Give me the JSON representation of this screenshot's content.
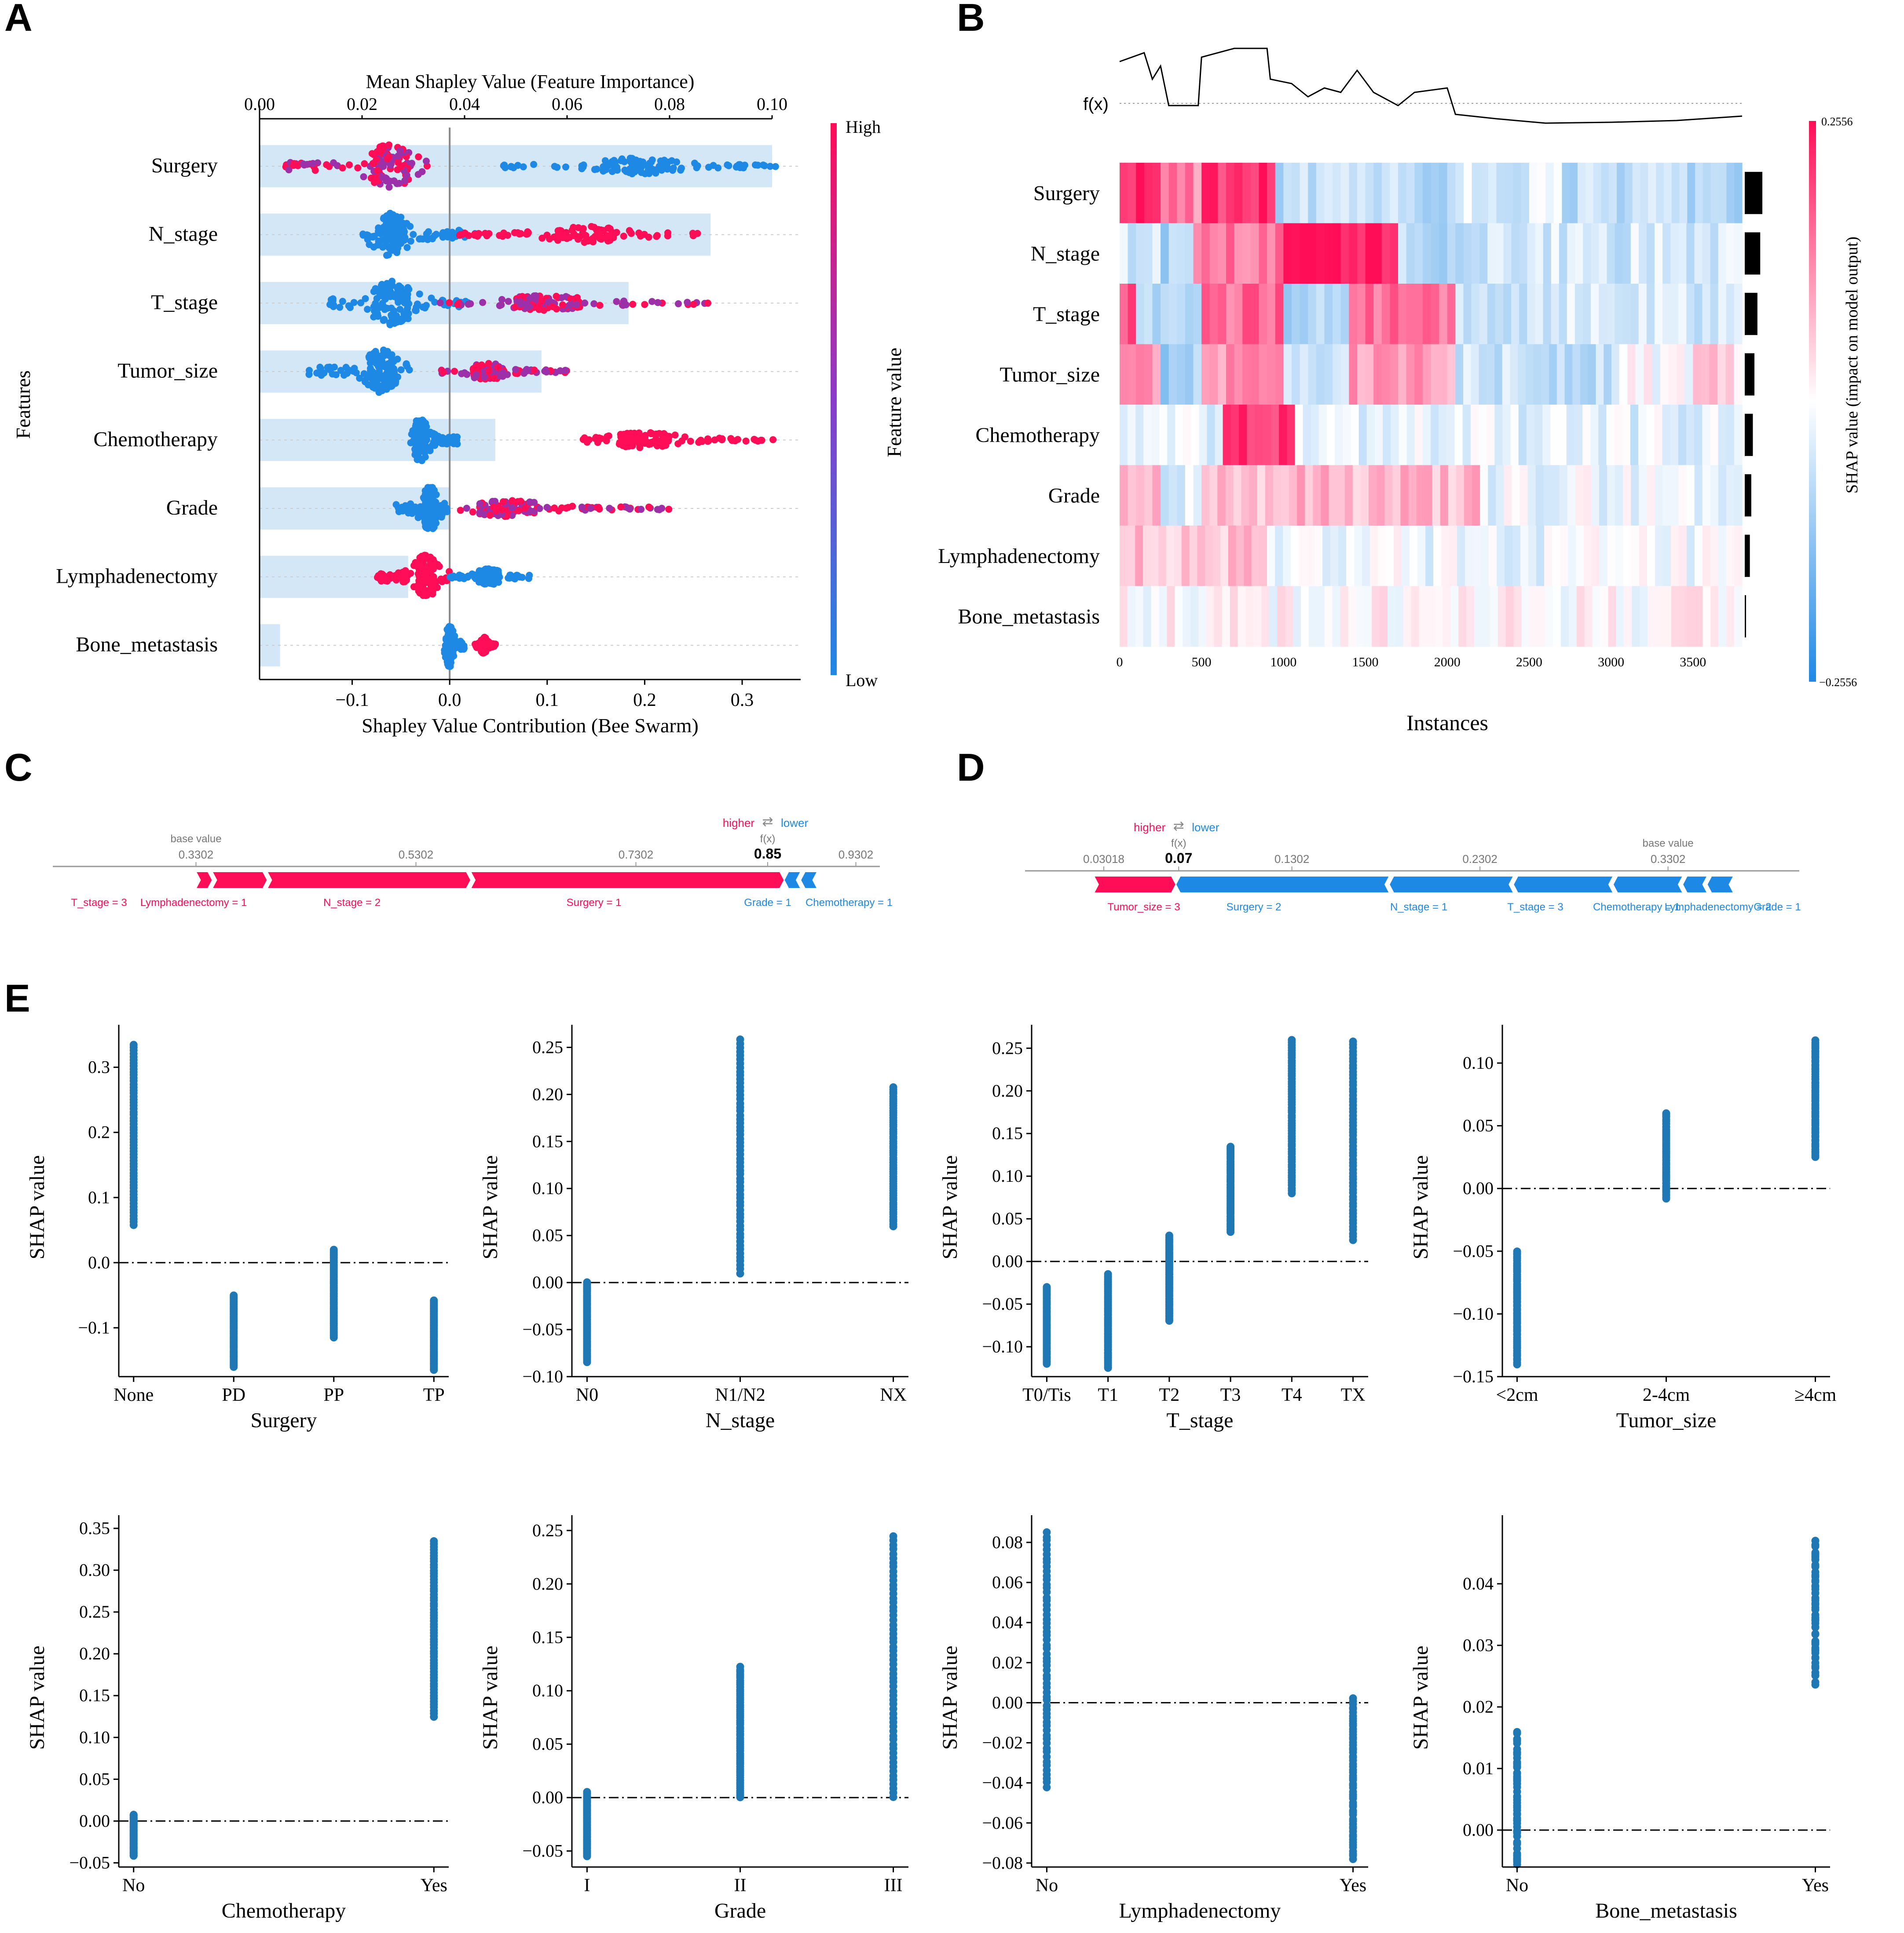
{
  "colors": {
    "pink": "#ff0d57",
    "blue": "#1e88e5",
    "purple": "#9b30a8",
    "lightblue": "#cfe4f6",
    "dep": "#1f77b4",
    "axis": "#000000",
    "grey": "#888888"
  },
  "panel_labels": [
    "A",
    "B",
    "C",
    "D",
    "E"
  ],
  "chart_data": [
    {
      "id": "A",
      "type": "scatter",
      "title": "Mean Shapley Value (Feature Importance)",
      "xlabel": "Shapley Value Contribution (Bee Swarm)",
      "ylabel": "Features",
      "colorbar": {
        "label": "Feature value",
        "high": "High",
        "low": "Low"
      },
      "features": [
        "Surgery",
        "N_stage",
        "T_stage",
        "Tumor_size",
        "Chemotherapy",
        "Grade",
        "Lymphadenectomy",
        "Bone_metastasis"
      ],
      "mean_importance": [
        0.1,
        0.088,
        0.072,
        0.055,
        0.046,
        0.037,
        0.029,
        0.004
      ],
      "importance_ticks": [
        "0.00",
        "0.02",
        "0.04",
        "0.06",
        "0.08",
        "0.10"
      ],
      "importance_tick_values": [
        0,
        0.02,
        0.04,
        0.06,
        0.08,
        0.1
      ],
      "importance_xlim": [
        0,
        0.1
      ],
      "shap_ticks": [
        "−0.1",
        "0.0",
        "0.1",
        "0.2",
        "0.3"
      ],
      "shap_tick_values": [
        -0.1,
        0,
        0.1,
        0.2,
        0.3
      ],
      "shap_xlim": [
        -0.195,
        0.36
      ],
      "swarm": [
        {
          "neg_low": -0.17,
          "neg_high": -0.02,
          "neg_center": -0.06,
          "neg_color": "pink_purple",
          "pos_low": 0.05,
          "pos_high": 0.335,
          "pos_center": 0.19,
          "pos_color": "blue"
        },
        {
          "neg_low": -0.09,
          "neg_high": 0.03,
          "neg_center": -0.06,
          "neg_color": "blue",
          "pos_low": 0.01,
          "pos_high": 0.26,
          "pos_center": 0.14,
          "pos_color": "pink"
        },
        {
          "neg_low": -0.125,
          "neg_high": 0.02,
          "neg_center": -0.06,
          "neg_color": "blue",
          "pos_low": -0.01,
          "pos_high": 0.265,
          "pos_center": 0.1,
          "pos_color": "pink_purple"
        },
        {
          "neg_low": -0.145,
          "neg_high": -0.04,
          "neg_center": -0.07,
          "neg_color": "blue",
          "pos_low": -0.01,
          "pos_high": 0.12,
          "pos_center": 0.04,
          "pos_color": "pink_purple"
        },
        {
          "neg_low": -0.04,
          "neg_high": 0.01,
          "neg_center": -0.03,
          "neg_color": "blue",
          "pos_low": 0.125,
          "pos_high": 0.335,
          "pos_center": 0.2,
          "pos_color": "pink"
        },
        {
          "neg_low": -0.055,
          "neg_high": 0.0,
          "neg_center": -0.02,
          "neg_color": "blue",
          "pos_low": 0.005,
          "pos_high": 0.245,
          "pos_center": 0.06,
          "pos_color": "pink_purple"
        },
        {
          "neg_low": -0.075,
          "neg_high": 0.0,
          "neg_center": -0.025,
          "neg_color": "pink",
          "pos_low": 0.0,
          "pos_high": 0.085,
          "pos_center": 0.04,
          "pos_color": "blue"
        },
        {
          "neg_low": -0.006,
          "neg_high": 0.015,
          "neg_center": 0.0,
          "neg_color": "blue",
          "pos_low": 0.025,
          "pos_high": 0.047,
          "pos_center": 0.035,
          "pos_color": "pink"
        }
      ]
    },
    {
      "id": "B",
      "type": "heatmap",
      "fx_label": "f(x)",
      "xlabel": "Instances",
      "colorbar_label": "SHAP value (impact on model output)",
      "colorbar_max": "0.2556",
      "colorbar_min": "−0.2556",
      "x_ticks": [
        "0",
        "500",
        "1000",
        "1500",
        "2000",
        "2500",
        "3000",
        "3500"
      ],
      "x_tick_values": [
        0,
        500,
        1000,
        1500,
        2000,
        2500,
        3000,
        3500
      ],
      "xlim": [
        0,
        3800
      ],
      "features": [
        "Surgery",
        "N_stage",
        "T_stage",
        "Tumor_size",
        "Chemotherapy",
        "Grade",
        "Lymphadenectomy",
        "Bone_metastasis"
      ],
      "importance_bar": [
        0.1,
        0.088,
        0.072,
        0.055,
        0.046,
        0.037,
        0.029,
        0.004
      ],
      "segments": [
        [
          [
            0,
            250,
            0.9
          ],
          [
            250,
            500,
            0.5
          ],
          [
            500,
            950,
            0.85
          ],
          [
            950,
            1300,
            -0.3
          ],
          [
            1300,
            1500,
            -0.15
          ],
          [
            1500,
            2100,
            -0.3
          ],
          [
            2100,
            2700,
            -0.15
          ],
          [
            2700,
            3800,
            -0.3
          ]
        ],
        [
          [
            0,
            250,
            -0.15
          ],
          [
            250,
            450,
            -0.35
          ],
          [
            450,
            1000,
            0.55
          ],
          [
            1000,
            1700,
            0.95
          ],
          [
            1700,
            2100,
            -0.3
          ],
          [
            2100,
            3800,
            -0.2
          ]
        ],
        [
          [
            0,
            100,
            0.7
          ],
          [
            100,
            500,
            -0.3
          ],
          [
            500,
            1000,
            0.6
          ],
          [
            1000,
            1400,
            -0.35
          ],
          [
            1400,
            2050,
            0.6
          ],
          [
            2050,
            3800,
            -0.2
          ]
        ],
        [
          [
            0,
            250,
            0.4
          ],
          [
            250,
            500,
            -0.4
          ],
          [
            500,
            1000,
            0.45
          ],
          [
            1000,
            1400,
            -0.2
          ],
          [
            1400,
            2050,
            0.4
          ],
          [
            2050,
            3050,
            -0.25
          ],
          [
            3050,
            3500,
            0.0
          ],
          [
            3500,
            3800,
            0.2
          ]
        ],
        [
          [
            0,
            630,
            -0.1
          ],
          [
            630,
            1070,
            0.85
          ],
          [
            1070,
            3800,
            -0.12
          ]
        ],
        [
          [
            0,
            250,
            0.25
          ],
          [
            250,
            500,
            -0.15
          ],
          [
            500,
            2200,
            0.3
          ],
          [
            2200,
            3800,
            -0.08
          ]
        ],
        [
          [
            0,
            900,
            0.25
          ],
          [
            900,
            3800,
            -0.08
          ]
        ],
        [
          [
            0,
            3800,
            0.02
          ]
        ]
      ],
      "fx_path": [
        [
          0,
          0.8
        ],
        [
          150,
          0.9
        ],
        [
          200,
          0.6
        ],
        [
          250,
          0.75
        ],
        [
          300,
          0.3
        ],
        [
          480,
          0.3
        ],
        [
          500,
          0.85
        ],
        [
          700,
          0.95
        ],
        [
          900,
          0.95
        ],
        [
          920,
          0.6
        ],
        [
          1050,
          0.55
        ],
        [
          1150,
          0.4
        ],
        [
          1250,
          0.5
        ],
        [
          1350,
          0.45
        ],
        [
          1450,
          0.7
        ],
        [
          1550,
          0.45
        ],
        [
          1700,
          0.3
        ],
        [
          1800,
          0.45
        ],
        [
          2000,
          0.5
        ],
        [
          2050,
          0.2
        ],
        [
          2300,
          0.15
        ],
        [
          2600,
          0.1
        ],
        [
          3000,
          0.11
        ],
        [
          3400,
          0.13
        ],
        [
          3800,
          0.18
        ]
      ]
    },
    {
      "id": "C",
      "type": "force",
      "header_higher": "higher",
      "header_lower": "lower",
      "base_value_label": "base value",
      "base_value": "0.3302",
      "fx_label": "f(x)",
      "fx_value": "0.85",
      "ticks": [
        "0.3302",
        "0.5302",
        "0.7302",
        "0.85",
        "0.9302"
      ],
      "tick_values": [
        0.3302,
        0.5302,
        0.7302,
        0.85,
        0.9302
      ],
      "xlim": [
        0.2,
        1.0
      ],
      "positive": [
        {
          "label": "T_stage = 3",
          "from": 0.3302,
          "to": 0.345
        },
        {
          "label": "Lymphadenectomy = 1",
          "from": 0.345,
          "to": 0.395
        },
        {
          "label": "N_stage = 2",
          "from": 0.395,
          "to": 0.58
        },
        {
          "label": "Surgery = 1",
          "from": 0.58,
          "to": 0.865
        }
      ],
      "negative": [
        {
          "label": "Grade = 1",
          "from": 0.865,
          "to": 0.88
        },
        {
          "label": "Chemotherapy = 1",
          "from": 0.88,
          "to": 0.895
        }
      ]
    },
    {
      "id": "D",
      "type": "force",
      "header_higher": "higher",
      "header_lower": "lower",
      "base_value_label": "base value",
      "base_value": "0.3302",
      "fx_label": "f(x)",
      "fx_value": "0.07",
      "ticks": [
        "0.03018",
        "0.07",
        "0.1302",
        "0.2302",
        "0.3302"
      ],
      "tick_values": [
        0.03018,
        0.07,
        0.1302,
        0.2302,
        0.3302
      ],
      "xlim": [
        0.0,
        0.4
      ],
      "positive": [
        {
          "label": "Tumor_size = 3",
          "from": 0.025,
          "to": 0.0685
        }
      ],
      "negative": [
        {
          "label": "Surgery = 2",
          "from": 0.0685,
          "to": 0.182
        },
        {
          "label": "N_stage = 1",
          "from": 0.182,
          "to": 0.248
        },
        {
          "label": "T_stage = 3",
          "from": 0.248,
          "to": 0.301
        },
        {
          "label": "Chemotherapy = 1",
          "from": 0.301,
          "to": 0.338
        },
        {
          "label": "Lymphadenectomy = 2",
          "from": 0.338,
          "to": 0.351
        },
        {
          "label": "Grade = 1",
          "from": 0.351,
          "to": 0.365
        }
      ]
    },
    {
      "id": "E",
      "type": "scatter",
      "ylabel": "SHAP value",
      "plots": [
        {
          "name": "Surgery",
          "categories": [
            "None",
            "PD",
            "PP",
            "TP"
          ],
          "ymin": -0.175,
          "ymax": 0.345,
          "ticks": [
            -0.1,
            0.0,
            0.1,
            0.2,
            0.3
          ],
          "tick_labels": [
            "−0.1",
            "0.0",
            "0.1",
            "0.2",
            "0.3"
          ],
          "ranges": [
            [
              0.058,
              0.335
            ],
            [
              -0.16,
              -0.05
            ],
            [
              -0.115,
              0.02
            ],
            [
              -0.165,
              -0.058
            ]
          ]
        },
        {
          "name": "N_stage",
          "categories": [
            "N0",
            "N1/N2",
            "NX"
          ],
          "ymin": -0.1,
          "ymax": 0.26,
          "ticks": [
            -0.1,
            -0.05,
            0.0,
            0.05,
            0.1,
            0.15,
            0.2,
            0.25
          ],
          "tick_labels": [
            "−0.10",
            "−0.05",
            "0.00",
            "0.05",
            "0.10",
            "0.15",
            "0.20",
            "0.25"
          ],
          "ranges": [
            [
              -0.085,
              0.0
            ],
            [
              0.01,
              0.258
            ],
            [
              0.06,
              0.208
            ]
          ]
        },
        {
          "name": "T_stage",
          "categories": [
            "T0/Tis",
            "T1",
            "T2",
            "T3",
            "T4",
            "TX"
          ],
          "ymin": -0.135,
          "ymax": 0.262,
          "ticks": [
            -0.1,
            -0.05,
            0.0,
            0.05,
            0.1,
            0.15,
            0.2,
            0.25
          ],
          "tick_labels": [
            "−0.10",
            "−0.05",
            "0.00",
            "0.05",
            "0.10",
            "0.15",
            "0.20",
            "0.25"
          ],
          "ranges": [
            [
              -0.12,
              -0.03
            ],
            [
              -0.125,
              -0.015
            ],
            [
              -0.07,
              0.03
            ],
            [
              0.035,
              0.135
            ],
            [
              0.08,
              0.26
            ],
            [
              0.025,
              0.258
            ]
          ]
        },
        {
          "name": "Tumor_size",
          "categories": [
            "<2cm",
            "2-4cm",
            "≥4cm"
          ],
          "ymin": -0.15,
          "ymax": 0.12,
          "ticks": [
            -0.15,
            -0.1,
            -0.05,
            0.0,
            0.05,
            0.1
          ],
          "tick_labels": [
            "−0.15",
            "−0.10",
            "−0.05",
            "0.00",
            "0.05",
            "0.10"
          ],
          "ranges": [
            [
              -0.14,
              -0.05
            ],
            [
              -0.008,
              0.06
            ],
            [
              0.025,
              0.118
            ]
          ]
        },
        {
          "name": "Chemotherapy",
          "categories": [
            "No",
            "Yes"
          ],
          "ymin": -0.055,
          "ymax": 0.35,
          "ticks": [
            -0.05,
            0.0,
            0.05,
            0.1,
            0.15,
            0.2,
            0.25,
            0.3,
            0.35
          ],
          "tick_labels": [
            "−0.05",
            "0.00",
            "0.05",
            "0.10",
            "0.15",
            "0.20",
            "0.25",
            "0.30",
            "0.35"
          ],
          "ranges": [
            [
              -0.042,
              0.008
            ],
            [
              0.125,
              0.335
            ]
          ]
        },
        {
          "name": "Grade",
          "categories": [
            "I",
            "II",
            "III"
          ],
          "ymin": -0.065,
          "ymax": 0.252,
          "ticks": [
            -0.05,
            0.0,
            0.05,
            0.1,
            0.15,
            0.2,
            0.25
          ],
          "tick_labels": [
            "−0.05",
            "0.00",
            "0.05",
            "0.10",
            "0.15",
            "0.20",
            "0.25"
          ],
          "ranges": [
            [
              -0.055,
              0.005
            ],
            [
              0.0,
              0.122
            ],
            [
              0.0,
              0.245
            ]
          ]
        },
        {
          "name": "Lymphadenectomy",
          "categories": [
            "No",
            "Yes"
          ],
          "ymin": -0.082,
          "ymax": 0.087,
          "ticks": [
            -0.08,
            -0.06,
            -0.04,
            -0.02,
            0.0,
            0.02,
            0.04,
            0.06,
            0.08
          ],
          "tick_labels": [
            "−0.08",
            "−0.06",
            "−0.04",
            "−0.02",
            "0.00",
            "0.02",
            "0.04",
            "0.06",
            "0.08"
          ],
          "ranges": [
            [
              -0.042,
              0.085
            ],
            [
              -0.078,
              0.002
            ]
          ]
        },
        {
          "name": "Bone_metastasis",
          "categories": [
            "No",
            "Yes"
          ],
          "ymin": -0.006,
          "ymax": 0.049,
          "ticks": [
            0.0,
            0.01,
            0.02,
            0.03,
            0.04
          ],
          "tick_labels": [
            "0.00",
            "0.01",
            "0.02",
            "0.03",
            "0.04"
          ],
          "ranges": [
            [
              -0.006,
              0.016
            ],
            [
              0.024,
              0.047
            ]
          ]
        }
      ]
    }
  ]
}
